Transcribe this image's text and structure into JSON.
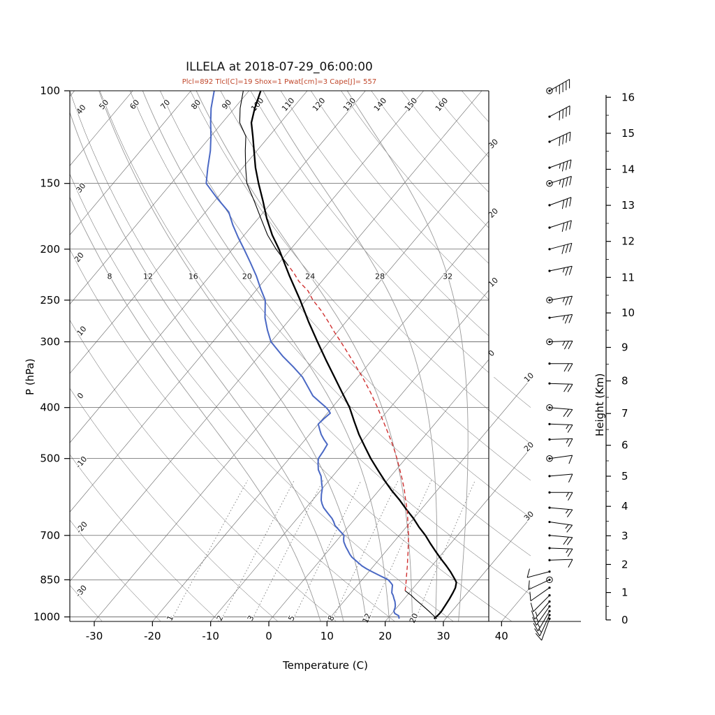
{
  "header": {
    "title": "ILLELA at 2018-07-29_06:00:00",
    "params_line": "Plcl=892 Tlcl[C]=19 Shox=1 Pwat[cm]=3 Cape[J]= 557",
    "params_color": "#c0462a"
  },
  "axes": {
    "x_label": "Temperature (C)",
    "y_left_label": "P (hPa)",
    "y_right_label": "Height (Km)",
    "x_ticks": [
      -30,
      -20,
      -10,
      0,
      10,
      20,
      30,
      40
    ],
    "pressure_ticks": [
      100,
      150,
      200,
      250,
      300,
      400,
      500,
      700,
      850,
      1000
    ],
    "height_ticks": [
      0,
      1,
      2,
      3,
      4,
      5,
      6,
      7,
      8,
      9,
      10,
      11,
      12,
      13,
      14,
      15,
      16
    ]
  },
  "chart_data": {
    "type": "line",
    "subtype": "skewt-logp",
    "pressure_range": [
      100,
      1020
    ],
    "temperature_range": [
      -35,
      41
    ],
    "grid": {
      "isobars": [
        100,
        150,
        200,
        250,
        300,
        400,
        500,
        700,
        850,
        1000
      ],
      "isotherms_step": 10,
      "isotherm_right_labels": [
        "30",
        "20",
        "10",
        "0"
      ],
      "isotherm_lower_right_labels": [
        "10",
        "20",
        "30"
      ],
      "dry_adiabat_top_labels": [
        50,
        60,
        70,
        80,
        90,
        100,
        110,
        120,
        130,
        140,
        150,
        160
      ],
      "dry_adiabat_left_labels": [
        40,
        30,
        20,
        10,
        0,
        -10,
        -20,
        -30
      ],
      "moist_adiabats": [
        8,
        12,
        16,
        20,
        24,
        28,
        32
      ],
      "mixing_ratio_lines": [
        1,
        2,
        3,
        5,
        8,
        12,
        20
      ]
    },
    "colors": {
      "temperature": "#000000",
      "dewpoint": "#4a68c4",
      "parcel": "#d03030",
      "grid_dark": "#555555",
      "grid_gray": "#999999"
    },
    "series": [
      {
        "name": "temperature",
        "color": "#000000",
        "width": 2.3,
        "points": [
          [
            1008,
            28
          ],
          [
            990,
            28.2
          ],
          [
            975,
            28.2
          ],
          [
            950,
            28
          ],
          [
            925,
            27.8
          ],
          [
            900,
            27.5
          ],
          [
            880,
            27.2
          ],
          [
            860,
            26.6
          ],
          [
            850,
            26
          ],
          [
            820,
            24
          ],
          [
            800,
            22.5
          ],
          [
            775,
            20.5
          ],
          [
            750,
            18.5
          ],
          [
            725,
            16.5
          ],
          [
            700,
            14.5
          ],
          [
            675,
            12.2
          ],
          [
            650,
            10
          ],
          [
            625,
            7.5
          ],
          [
            600,
            5
          ],
          [
            575,
            2.2
          ],
          [
            550,
            -0.5
          ],
          [
            525,
            -3.2
          ],
          [
            500,
            -6
          ],
          [
            475,
            -8.7
          ],
          [
            450,
            -11.5
          ],
          [
            425,
            -14.2
          ],
          [
            400,
            -17
          ],
          [
            375,
            -20.4
          ],
          [
            350,
            -24
          ],
          [
            325,
            -27.9
          ],
          [
            300,
            -32
          ],
          [
            275,
            -36.4
          ],
          [
            250,
            -41
          ],
          [
            225,
            -46.3
          ],
          [
            200,
            -52
          ],
          [
            188,
            -55.2
          ],
          [
            175,
            -58.5
          ],
          [
            162,
            -61.7
          ],
          [
            150,
            -65
          ],
          [
            140,
            -67.8
          ],
          [
            130,
            -70.5
          ],
          [
            122,
            -72.8
          ],
          [
            115,
            -75
          ],
          [
            108,
            -76.5
          ],
          [
            100,
            -78
          ]
        ]
      },
      {
        "name": "dewpoint",
        "color": "#4a68c4",
        "width": 2,
        "points": [
          [
            1008,
            22
          ],
          [
            995,
            21.5
          ],
          [
            985,
            20.5
          ],
          [
            975,
            20
          ],
          [
            960,
            19.7
          ],
          [
            950,
            19.4
          ],
          [
            935,
            18.8
          ],
          [
            925,
            18.3
          ],
          [
            910,
            17.6
          ],
          [
            900,
            17
          ],
          [
            885,
            16.5
          ],
          [
            870,
            16
          ],
          [
            860,
            15.3
          ],
          [
            850,
            14.5
          ],
          [
            835,
            12.5
          ],
          [
            820,
            10.5
          ],
          [
            810,
            9.2
          ],
          [
            800,
            8
          ],
          [
            785,
            6.5
          ],
          [
            770,
            5
          ],
          [
            760,
            4.2
          ],
          [
            750,
            3.5
          ],
          [
            735,
            2.4
          ],
          [
            720,
            1.4
          ],
          [
            710,
            0.9
          ],
          [
            700,
            0.5
          ],
          [
            685,
            -1
          ],
          [
            670,
            -2.5
          ],
          [
            660,
            -3.2
          ],
          [
            650,
            -4
          ],
          [
            635,
            -5.5
          ],
          [
            620,
            -7
          ],
          [
            610,
            -7.8
          ],
          [
            600,
            -8.5
          ],
          [
            585,
            -9.3
          ],
          [
            570,
            -10
          ],
          [
            555,
            -11
          ],
          [
            540,
            -12
          ],
          [
            525,
            -13.4
          ],
          [
            510,
            -14.4
          ],
          [
            500,
            -15
          ],
          [
            485,
            -15.2
          ],
          [
            470,
            -15.5
          ],
          [
            460,
            -16.8
          ],
          [
            450,
            -18
          ],
          [
            440,
            -19
          ],
          [
            430,
            -20
          ],
          [
            420,
            -19.8
          ],
          [
            410,
            -19.5
          ],
          [
            405,
            -20.2
          ],
          [
            400,
            -21
          ],
          [
            390,
            -23
          ],
          [
            380,
            -25
          ],
          [
            365,
            -27.2
          ],
          [
            350,
            -29.5
          ],
          [
            335,
            -32.5
          ],
          [
            320,
            -35.8
          ],
          [
            300,
            -40
          ],
          [
            285,
            -42.3
          ],
          [
            270,
            -44.5
          ],
          [
            250,
            -47
          ],
          [
            238,
            -49.4
          ],
          [
            225,
            -52
          ],
          [
            212,
            -55
          ],
          [
            200,
            -58
          ],
          [
            190,
            -60.7
          ],
          [
            180,
            -63.4
          ],
          [
            170,
            -66
          ],
          [
            160,
            -70
          ],
          [
            150,
            -74
          ],
          [
            140,
            -76
          ],
          [
            130,
            -78
          ],
          [
            122,
            -80
          ],
          [
            115,
            -82
          ],
          [
            108,
            -84
          ],
          [
            100,
            -86
          ]
        ]
      },
      {
        "name": "parcel-dry",
        "color": "#000000",
        "width": 1.1,
        "points": [
          [
            1008,
            28.5
          ],
          [
            975,
            26
          ],
          [
            950,
            24
          ],
          [
            925,
            21.9
          ],
          [
            910,
            20.7
          ],
          [
            892,
            19
          ]
        ]
      },
      {
        "name": "parcel-moist",
        "color": "#d03030",
        "width": 1.4,
        "dash": "6 4",
        "points": [
          [
            892,
            19
          ],
          [
            870,
            18.3
          ],
          [
            850,
            17.6
          ],
          [
            825,
            16.7
          ],
          [
            800,
            15.8
          ],
          [
            775,
            14.8
          ],
          [
            750,
            13.8
          ],
          [
            725,
            12.7
          ],
          [
            700,
            11.6
          ],
          [
            675,
            10.3
          ],
          [
            650,
            9
          ],
          [
            625,
            7.6
          ],
          [
            600,
            6
          ],
          [
            575,
            4.4
          ],
          [
            550,
            2.6
          ],
          [
            525,
            0.6
          ],
          [
            500,
            -1.5
          ],
          [
            475,
            -3.8
          ],
          [
            450,
            -6.4
          ],
          [
            425,
            -9.2
          ],
          [
            400,
            -12.2
          ],
          [
            375,
            -15.5
          ],
          [
            350,
            -19.2
          ],
          [
            325,
            -23.4
          ],
          [
            300,
            -28
          ],
          [
            288,
            -30.4
          ],
          [
            275,
            -33
          ],
          [
            262,
            -35.8
          ],
          [
            250,
            -38.8
          ],
          [
            240,
            -41
          ],
          [
            230,
            -44
          ],
          [
            222,
            -46
          ],
          [
            215,
            -48
          ]
        ]
      },
      {
        "name": "parcel-above-el",
        "color": "#000000",
        "width": 1.1,
        "points": [
          [
            215,
            -48
          ],
          [
            200,
            -52.5
          ],
          [
            188,
            -56
          ],
          [
            175,
            -59.5
          ],
          [
            162,
            -63.2
          ],
          [
            150,
            -67
          ],
          [
            140,
            -69.5
          ],
          [
            130,
            -72
          ],
          [
            122,
            -74
          ],
          [
            115,
            -77
          ],
          [
            108,
            -79
          ],
          [
            100,
            -81
          ]
        ]
      }
    ],
    "wind_barbs": [
      {
        "p": 100,
        "dir": 60,
        "spd": 45,
        "circle": true
      },
      {
        "p": 112,
        "dir": 62,
        "spd": 40,
        "circle": false
      },
      {
        "p": 125,
        "dir": 65,
        "spd": 40,
        "circle": false
      },
      {
        "p": 140,
        "dir": 70,
        "spd": 35,
        "circle": false
      },
      {
        "p": 150,
        "dir": 72,
        "spd": 35,
        "circle": true
      },
      {
        "p": 165,
        "dir": 70,
        "spd": 30,
        "circle": false
      },
      {
        "p": 182,
        "dir": 72,
        "spd": 30,
        "circle": false
      },
      {
        "p": 200,
        "dir": 75,
        "spd": 30,
        "circle": false
      },
      {
        "p": 220,
        "dir": 78,
        "spd": 25,
        "circle": false
      },
      {
        "p": 250,
        "dir": 80,
        "spd": 25,
        "circle": true
      },
      {
        "p": 270,
        "dir": 82,
        "spd": 25,
        "circle": false
      },
      {
        "p": 300,
        "dir": 88,
        "spd": 25,
        "circle": true
      },
      {
        "p": 330,
        "dir": 90,
        "spd": 20,
        "circle": false
      },
      {
        "p": 360,
        "dir": 92,
        "spd": 20,
        "circle": false
      },
      {
        "p": 400,
        "dir": 95,
        "spd": 20,
        "circle": true
      },
      {
        "p": 430,
        "dir": 92,
        "spd": 15,
        "circle": false
      },
      {
        "p": 460,
        "dir": 88,
        "spd": 15,
        "circle": false
      },
      {
        "p": 500,
        "dir": 82,
        "spd": 10,
        "circle": true
      },
      {
        "p": 540,
        "dir": 85,
        "spd": 10,
        "circle": false
      },
      {
        "p": 580,
        "dir": 90,
        "spd": 15,
        "circle": false
      },
      {
        "p": 620,
        "dir": 95,
        "spd": 15,
        "circle": false
      },
      {
        "p": 660,
        "dir": 98,
        "spd": 15,
        "circle": false
      },
      {
        "p": 700,
        "dir": 95,
        "spd": 20,
        "circle": false
      },
      {
        "p": 740,
        "dir": 92,
        "spd": 15,
        "circle": false
      },
      {
        "p": 780,
        "dir": 88,
        "spd": 10,
        "circle": false
      },
      {
        "p": 820,
        "dir": 255,
        "spd": 10,
        "circle": false
      },
      {
        "p": 850,
        "dir": 245,
        "spd": 10,
        "circle": true
      },
      {
        "p": 880,
        "dir": 235,
        "spd": 10,
        "circle": false
      },
      {
        "p": 910,
        "dir": 225,
        "spd": 10,
        "circle": false
      },
      {
        "p": 935,
        "dir": 220,
        "spd": 15,
        "circle": false
      },
      {
        "p": 955,
        "dir": 215,
        "spd": 15,
        "circle": false
      },
      {
        "p": 975,
        "dir": 210,
        "spd": 15,
        "circle": false
      },
      {
        "p": 992,
        "dir": 205,
        "spd": 15,
        "circle": false
      },
      {
        "p": 1008,
        "dir": 200,
        "spd": 10,
        "circle": false
      }
    ]
  }
}
